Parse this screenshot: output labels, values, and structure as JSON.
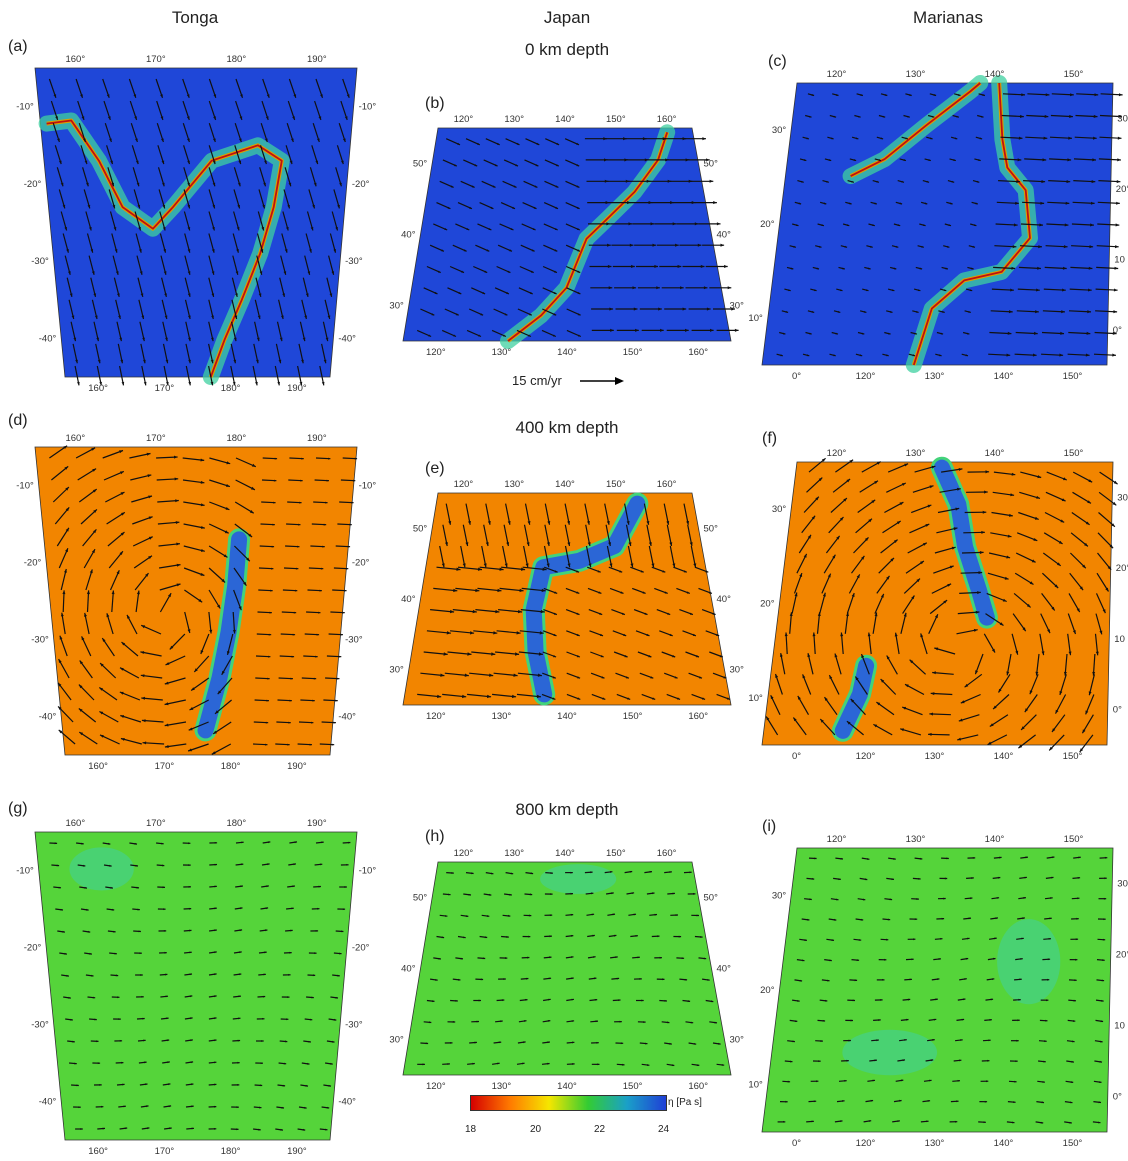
{
  "columns": [
    "Tonga",
    "Japan",
    "Marianas"
  ],
  "depths": [
    "0 km depth",
    "400 km depth",
    "800 km depth"
  ],
  "panels": [
    {
      "id": "a",
      "label": "(a)",
      "region": "tonga",
      "depth": "0",
      "top": [
        "160°",
        "170°",
        "180°",
        "190°"
      ],
      "bottom": [
        "160°",
        "170°",
        "180°",
        "190°"
      ],
      "left": [
        "-10°",
        "-20°",
        "-30°",
        "-40°"
      ],
      "right": [
        "-10°",
        "-20°",
        "-30°",
        "-40°"
      ]
    },
    {
      "id": "b",
      "label": "(b)",
      "region": "japan",
      "depth": "0",
      "top": [
        "120°",
        "130°",
        "140°",
        "150°",
        "160°"
      ],
      "bottom": [
        "120°",
        "130°",
        "140°",
        "150°",
        "160°"
      ],
      "left": [
        "50°",
        "40°",
        "30°"
      ],
      "right": [
        "50°",
        "40°",
        "30°"
      ]
    },
    {
      "id": "c",
      "label": "(c)",
      "region": "marianas",
      "depth": "0",
      "top": [
        "120°",
        "130°",
        "140°",
        "150°"
      ],
      "bottom": [
        "0°",
        "120°",
        "130°",
        "140°",
        "150°"
      ],
      "left": [
        "30°",
        "20°",
        "10°"
      ],
      "right": [
        "30°",
        "20°",
        "10",
        "0°"
      ]
    },
    {
      "id": "d",
      "label": "(d)",
      "region": "tonga",
      "depth": "400",
      "top": [
        "160°",
        "170°",
        "180°",
        "190°"
      ],
      "bottom": [
        "160°",
        "170°",
        "180°",
        "190°"
      ],
      "left": [
        "-10°",
        "-20°",
        "-30°",
        "-40°"
      ],
      "right": [
        "-10°",
        "-20°",
        "-30°",
        "-40°"
      ]
    },
    {
      "id": "e",
      "label": "(e)",
      "region": "japan",
      "depth": "400",
      "top": [
        "120°",
        "130°",
        "140°",
        "150°",
        "160°"
      ],
      "bottom": [
        "120°",
        "130°",
        "140°",
        "150°",
        "160°"
      ],
      "left": [
        "50°",
        "40°",
        "30°"
      ],
      "right": [
        "50°",
        "40°",
        "30°"
      ]
    },
    {
      "id": "f",
      "label": "(f)",
      "region": "marianas",
      "depth": "400",
      "top": [
        "120°",
        "130°",
        "140°",
        "150°"
      ],
      "bottom": [
        "0°",
        "120°",
        "130°",
        "140°",
        "150°"
      ],
      "left": [
        "30°",
        "20°",
        "10°"
      ],
      "right": [
        "30°",
        "20°",
        "10",
        "0°"
      ]
    },
    {
      "id": "g",
      "label": "(g)",
      "region": "tonga",
      "depth": "800",
      "top": [
        "160°",
        "170°",
        "180°",
        "190°"
      ],
      "bottom": [
        "160°",
        "170°",
        "180°",
        "190°"
      ],
      "left": [
        "-10°",
        "-20°",
        "-30°",
        "-40°"
      ],
      "right": [
        "-10°",
        "-20°",
        "-30°",
        "-40°"
      ]
    },
    {
      "id": "h",
      "label": "(h)",
      "region": "japan",
      "depth": "800",
      "top": [
        "120°",
        "130°",
        "140°",
        "150°",
        "160°"
      ],
      "bottom": [
        "120°",
        "130°",
        "140°",
        "150°",
        "160°"
      ],
      "left": [
        "50°",
        "40°",
        "30°"
      ],
      "right": [
        "50°",
        "40°",
        "30°"
      ]
    },
    {
      "id": "i",
      "label": "(i)",
      "region": "marianas",
      "depth": "800",
      "top": [
        "120°",
        "130°",
        "140°",
        "150°"
      ],
      "bottom": [
        "0°",
        "120°",
        "130°",
        "140°",
        "150°"
      ],
      "left": [
        "30°",
        "20°",
        "10°"
      ],
      "right": [
        "30°",
        "20°",
        "10",
        "0°"
      ]
    }
  ],
  "scale_label": "15 cm/yr",
  "colorbar": {
    "unit": "η [Pa s]",
    "ticks": [
      "18",
      "20",
      "22",
      "24"
    ],
    "colors": [
      "#d50000",
      "#ff7a00",
      "#f5e600",
      "#33cc33",
      "#1aa0c8",
      "#1f3fd6"
    ]
  },
  "fill_colors": {
    "surface": "#1f47d8",
    "mid": "#f28500",
    "deep": "#55d43a",
    "slab": "#2b66d6",
    "weak": "#3fd0a0"
  }
}
